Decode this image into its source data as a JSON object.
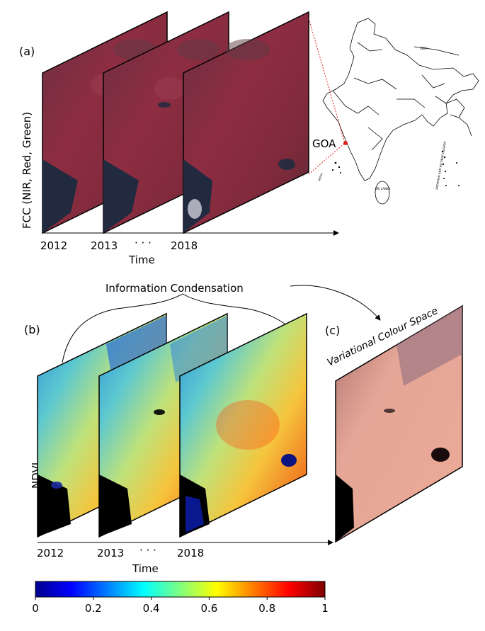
{
  "panel_a": {
    "label": "(a)",
    "ylabel": "FCC (NIR, Red, Green)",
    "years": [
      "2012",
      "2013",
      "2018"
    ],
    "dots": "· · ·",
    "time_label": "Time",
    "map_region_label": "GOA",
    "map_labels": [
      "TIBET",
      "SRI LANKA",
      "ANDAMAN AND NICOBAR ISLANDS",
      "INDIA"
    ]
  },
  "panel_b": {
    "label": "(b)",
    "ylabel": "NDVI",
    "years": [
      "2012",
      "2013",
      "2018"
    ],
    "dots": "· · ·",
    "time_label": "Time"
  },
  "condensation_label": "Information Condensation",
  "panel_c": {
    "label": "(c)",
    "title": "Variational Colour Space"
  },
  "colorbar": {
    "colormap": "jet",
    "ticks": [
      "0",
      "0.2",
      "0.4",
      "0.6",
      "0.8",
      "1"
    ]
  },
  "colors": {
    "fcc_base": "#7a2a3c",
    "fcc_water": "#1c2a40",
    "vcs_base": "#e8a394",
    "map_line": "#000000",
    "goa_pointer": "#e0201c"
  }
}
